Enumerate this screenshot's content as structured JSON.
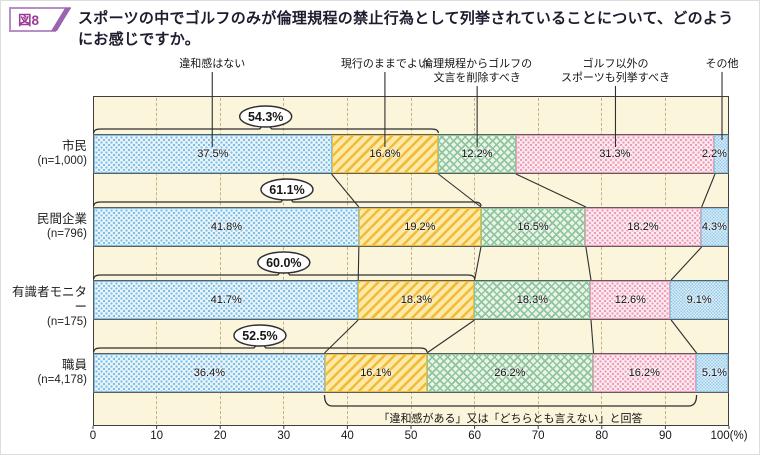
{
  "figure": {
    "badge_label": "図8",
    "title": "スポーツの中でゴルフのみが倫理規程の禁止行為として列挙されていることについて、どのようにお感じですか。",
    "badge_text_color": "#9c3a96",
    "badge_border_color": "#b58fc6",
    "badge_wedge_color": "#9d63ae"
  },
  "chart_data": {
    "type": "bar",
    "variant": "horizontal-stacked-percentage",
    "unit": "%",
    "xlim": [
      0,
      100
    ],
    "x_ticks": [
      0,
      10,
      20,
      30,
      40,
      50,
      60,
      70,
      80,
      90,
      100
    ],
    "x_axis_suffix": "(%)",
    "grid": "dashed-vertical",
    "legend_position": "top",
    "legend": [
      {
        "label": "違和感はない",
        "lines": [
          "違和感はない"
        ]
      },
      {
        "label": "現行のままでよい",
        "lines": [
          "現行のままでよい"
        ]
      },
      {
        "label": "倫理規程からゴルフの文言を削除すべき",
        "lines": [
          "倫理規程からゴルフの",
          "文言を削除すべき"
        ]
      },
      {
        "label": "ゴルフ以外のスポーツも列挙すべき",
        "lines": [
          "ゴルフ以外の",
          "スポーツも列挙すべき"
        ]
      },
      {
        "label": "その他",
        "lines": [
          "その他"
        ]
      }
    ],
    "rows": [
      {
        "category": "市民",
        "n_label": "(n=1,000)",
        "values": [
          37.5,
          16.8,
          12.2,
          31.3,
          2.2
        ],
        "total_label": "54.3%"
      },
      {
        "category": "民間企業",
        "n_label": "(n=796)",
        "values": [
          41.8,
          19.2,
          16.5,
          18.2,
          4.3
        ],
        "total_label": "61.1%"
      },
      {
        "category": "有識者モニター",
        "n_label": "(n=175)",
        "values": [
          41.7,
          18.3,
          18.3,
          12.6,
          9.1
        ],
        "total_label": "60.0%"
      },
      {
        "category": "職員",
        "n_label": "(n=4,178)",
        "values": [
          36.4,
          16.1,
          26.2,
          16.2,
          5.1
        ],
        "total_label": "52.5%"
      }
    ],
    "total_oval_meaning": "違和感はない＋現行のままでよい",
    "annotation_bracket": {
      "category": "職員",
      "row_index": 3,
      "start_segment_index": 1,
      "end_segment_index": 3,
      "label": "「違和感がある」又は「どちらとも言えない」と回答"
    },
    "segment_styles": [
      {
        "name": "blue-dotted",
        "base": "#eaf4fb",
        "accent": "#7fbfe3"
      },
      {
        "name": "yellow-striped",
        "base": "#fdeaa8",
        "accent": "#f2bc3b"
      },
      {
        "name": "green-crosshatch",
        "base": "#e9f3e6",
        "accent": "#8ec59e"
      },
      {
        "name": "pink-dotted",
        "base": "#fcebf1",
        "accent": "#ec9cb7"
      },
      {
        "name": "lightblue-dotted",
        "base": "#eef6fc",
        "accent": "#8fc7e7"
      }
    ],
    "plot_bg": "#fbf5dc",
    "grid_color": "#c9b183",
    "line_color": "#2f2f2f",
    "oval_fill": "#ffffff"
  }
}
